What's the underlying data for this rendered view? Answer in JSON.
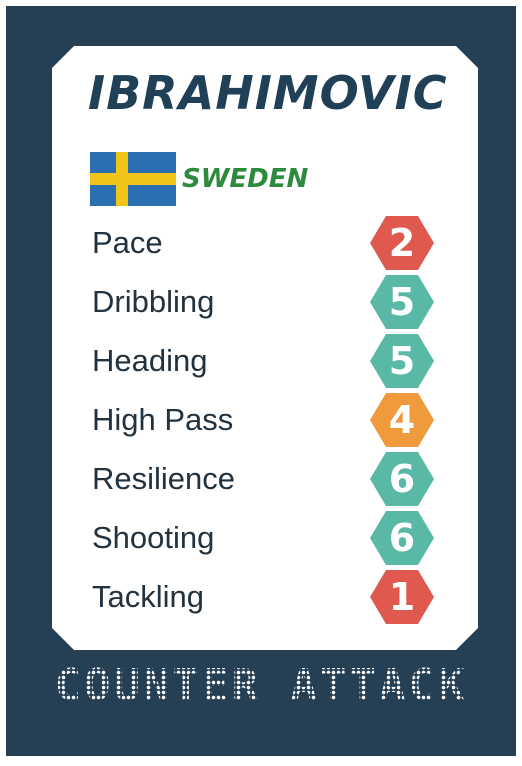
{
  "card": {
    "player_name": "IBRAHIMOVIC",
    "country": "SWEDEN",
    "flag_icon": "sweden-flag-icon",
    "stats": [
      {
        "label": "Pace",
        "value": "2",
        "color": "#e0594f"
      },
      {
        "label": "Dribbling",
        "value": "5",
        "color": "#5ab8a6"
      },
      {
        "label": "Heading",
        "value": "5",
        "color": "#5ab8a6"
      },
      {
        "label": "High Pass",
        "value": "4",
        "color": "#ee9a3d"
      },
      {
        "label": "Resilience",
        "value": "6",
        "color": "#5ab8a6"
      },
      {
        "label": "Shooting",
        "value": "6",
        "color": "#5ab8a6"
      },
      {
        "label": "Tackling",
        "value": "1",
        "color": "#e0594f"
      }
    ],
    "footer": "COUNTER ATTACK"
  },
  "colors": {
    "card_background": "#253f55",
    "name": "#1f4056",
    "country": "#2e8b3d"
  }
}
